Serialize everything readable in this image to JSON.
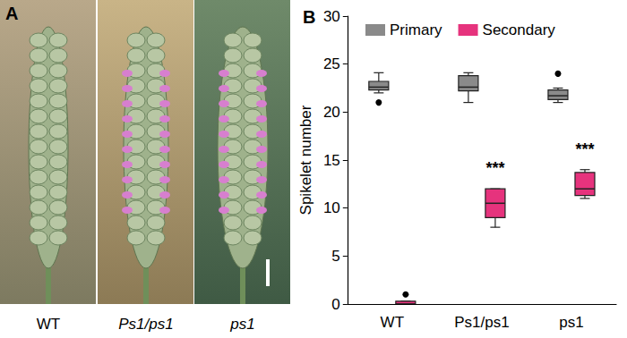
{
  "panel_a": {
    "label": "A",
    "photo_labels": [
      "WT",
      "Ps1/ps1",
      "ps1"
    ]
  },
  "chart_data": {
    "type": "boxplot",
    "title": "B",
    "y_label": "Spikelet number",
    "categories": [
      "WT",
      "Ps1/ps1",
      "ps1"
    ],
    "ylim": [
      0,
      30
    ],
    "yticks": [
      0,
      5,
      10,
      15,
      20,
      25,
      30
    ],
    "grid": false,
    "legend": "top-left",
    "series": [
      {
        "name": "Primary",
        "color": "#8a8a8a",
        "values": [
          {
            "min": 22,
            "q1": 22.3,
            "median": 22.6,
            "q3": 23.2,
            "max": 24.1
          },
          {
            "min": 21,
            "q1": 22.2,
            "median": 22.6,
            "q3": 23.8,
            "max": 24.1
          },
          {
            "min": 21,
            "q1": 21.3,
            "median": 21.7,
            "q3": 22.3,
            "max": 22.5
          }
        ],
        "outliers": [
          [
            21
          ],
          [],
          [
            24
          ]
        ]
      },
      {
        "name": "Secondary",
        "color": "#e6337d",
        "values": [
          {
            "min": 0,
            "q1": 0,
            "median": 0,
            "q3": 0.3,
            "max": 0.3
          },
          {
            "min": 8,
            "q1": 9,
            "median": 10.5,
            "q3": 12,
            "max": 12
          },
          {
            "min": 11,
            "q1": 11.3,
            "median": 12,
            "q3": 13.7,
            "max": 14
          }
        ],
        "outliers": [
          [
            1
          ],
          [],
          []
        ]
      }
    ],
    "annotations": [
      {
        "text": "***",
        "series": "Secondary",
        "category": "Ps1/ps1"
      },
      {
        "text": "***",
        "series": "Secondary",
        "category": "ps1"
      }
    ]
  }
}
